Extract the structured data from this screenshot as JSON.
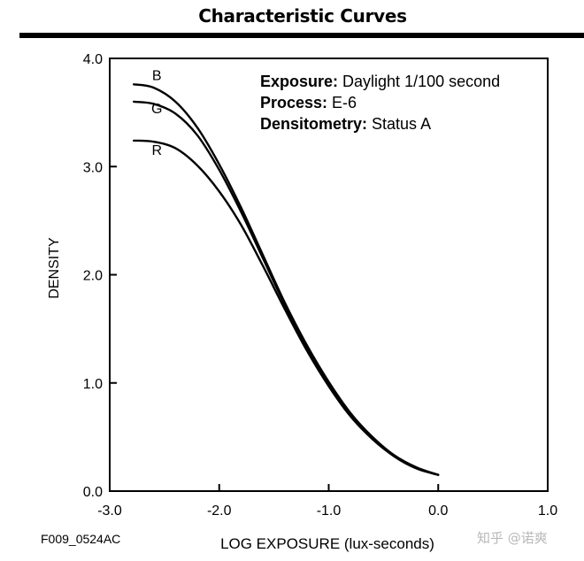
{
  "chart_data": {
    "type": "line",
    "title": "Characteristic Curves",
    "xlabel": "LOG EXPOSURE (lux-seconds)",
    "ylabel": "DENSITY",
    "xlim": [
      -3.0,
      1.0
    ],
    "ylim": [
      0.0,
      4.0
    ],
    "x_ticks": [
      "-3.0",
      "-2.0",
      "-1.0",
      "0.0",
      "1.0"
    ],
    "y_ticks": [
      "0.0",
      "1.0",
      "2.0",
      "3.0",
      "4.0"
    ],
    "annotations": [
      {
        "label": "Exposure:",
        "value": " Daylight 1/100 second"
      },
      {
        "label": "Process:",
        "value": " E-6"
      },
      {
        "label": "Densitometry:",
        "value": " Status A"
      }
    ],
    "series": [
      {
        "name": "B",
        "color": "#000000",
        "x": [
          -2.78,
          -2.6,
          -2.4,
          -2.2,
          -2.0,
          -1.8,
          -1.6,
          -1.4,
          -1.2,
          -1.0,
          -0.8,
          -0.6,
          -0.4,
          -0.2,
          0.0
        ],
        "y": [
          3.76,
          3.73,
          3.6,
          3.36,
          3.02,
          2.62,
          2.18,
          1.74,
          1.35,
          1.01,
          0.72,
          0.5,
          0.33,
          0.22,
          0.15
        ]
      },
      {
        "name": "G",
        "color": "#000000",
        "x": [
          -2.78,
          -2.6,
          -2.4,
          -2.2,
          -2.0,
          -1.8,
          -1.6,
          -1.4,
          -1.2,
          -1.0,
          -0.8,
          -0.6,
          -0.4,
          -0.2,
          0.0
        ],
        "y": [
          3.6,
          3.58,
          3.49,
          3.29,
          2.97,
          2.58,
          2.15,
          1.72,
          1.33,
          0.99,
          0.71,
          0.49,
          0.32,
          0.21,
          0.15
        ]
      },
      {
        "name": "R",
        "color": "#000000",
        "x": [
          -2.78,
          -2.6,
          -2.4,
          -2.2,
          -2.0,
          -1.8,
          -1.6,
          -1.4,
          -1.2,
          -1.0,
          -0.8,
          -0.6,
          -0.4,
          -0.2,
          0.0
        ],
        "y": [
          3.24,
          3.23,
          3.17,
          3.01,
          2.77,
          2.46,
          2.08,
          1.68,
          1.3,
          0.97,
          0.69,
          0.48,
          0.32,
          0.21,
          0.15
        ]
      }
    ]
  },
  "figure_code": "F009_0524AC",
  "watermark": "知乎 @诺爽"
}
